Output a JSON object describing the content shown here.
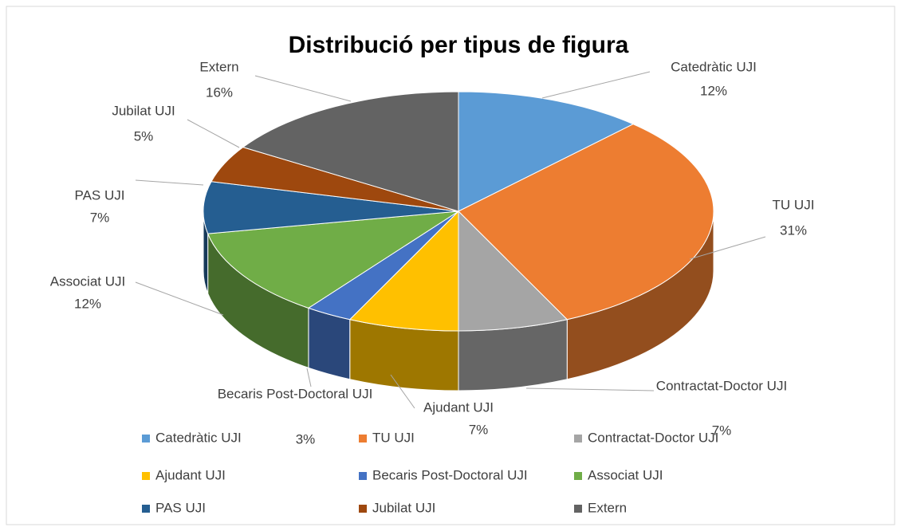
{
  "chart_data": {
    "type": "pie3d",
    "title": "Distribució per tipus de figura",
    "categories": [
      "Catedràtic UJI",
      "TU UJI",
      "Contractat-Doctor UJI",
      "Ajudant  UJI",
      "Becaris Post-Doctoral UJI",
      "Associat UJI",
      "PAS UJI",
      "Jubilat UJI",
      "Extern"
    ],
    "values": [
      12,
      31,
      7,
      7,
      3,
      12,
      7,
      5,
      16
    ],
    "value_labels": [
      "12%",
      "31%",
      "7%",
      "7%",
      "3%",
      "12%",
      "7%",
      "5%",
      "16%"
    ],
    "colors": [
      "#5b9bd5",
      "#ed7d31",
      "#a5a5a5",
      "#ffc000",
      "#4472c4",
      "#70ad47",
      "#255e91",
      "#9e480e",
      "#636363"
    ],
    "legend": "bottom"
  }
}
